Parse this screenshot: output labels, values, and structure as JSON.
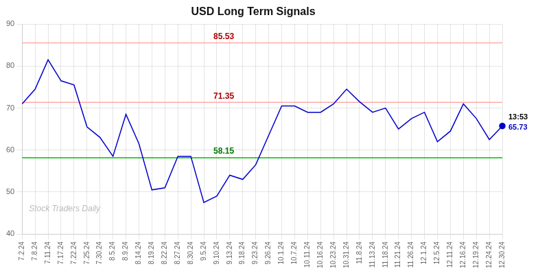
{
  "chart_data": {
    "type": "line",
    "title": "USD Long Term Signals",
    "categories": [
      "7.2.24",
      "7.8.24",
      "7.11.24",
      "7.17.24",
      "7.22.24",
      "7.25.24",
      "7.30.24",
      "8.5.24",
      "8.9.24",
      "8.14.24",
      "8.19.24",
      "8.22.24",
      "8.27.24",
      "8.30.24",
      "9.5.24",
      "9.10.24",
      "9.13.24",
      "9.18.24",
      "9.23.24",
      "9.26.24",
      "10.1.24",
      "10.7.24",
      "10.11.24",
      "10.16.24",
      "10.23.24",
      "10.31.24",
      "11.8.24",
      "11.13.24",
      "11.18.24",
      "11.21.24",
      "11.26.24",
      "12.1.24",
      "12.5.24",
      "12.11.24",
      "12.16.24",
      "12.19.24",
      "12.24.24",
      "12.30.24"
    ],
    "values": [
      71.0,
      74.5,
      81.5,
      76.5,
      75.5,
      65.5,
      63.0,
      58.5,
      68.5,
      61.5,
      50.5,
      51.0,
      58.5,
      58.5,
      47.5,
      49.0,
      54.0,
      53.0,
      56.5,
      63.5,
      70.5,
      70.5,
      69.0,
      69.0,
      71.0,
      74.5,
      71.5,
      69.0,
      70.0,
      65.0,
      67.5,
      69.0,
      62.0,
      64.5,
      71.0,
      67.5,
      62.5,
      65.73
    ],
    "color": "#0000cc",
    "ylim": [
      40,
      90
    ],
    "yticks": [
      40,
      50,
      60,
      70,
      80,
      90
    ],
    "grid": true,
    "hlines": [
      {
        "value": 85.53,
        "label": "85.53",
        "color": "#ffaaaa",
        "label_color": "#aa0000"
      },
      {
        "value": 71.35,
        "label": "71.35",
        "color": "#ffaaaa",
        "label_color": "#aa0000"
      },
      {
        "value": 58.15,
        "label": "58.15",
        "color": "#00bb00",
        "label_color": "#007700"
      }
    ],
    "watermark": "Stock Traders Daily",
    "last_point": {
      "time": "13:53",
      "value": 65.73
    }
  }
}
